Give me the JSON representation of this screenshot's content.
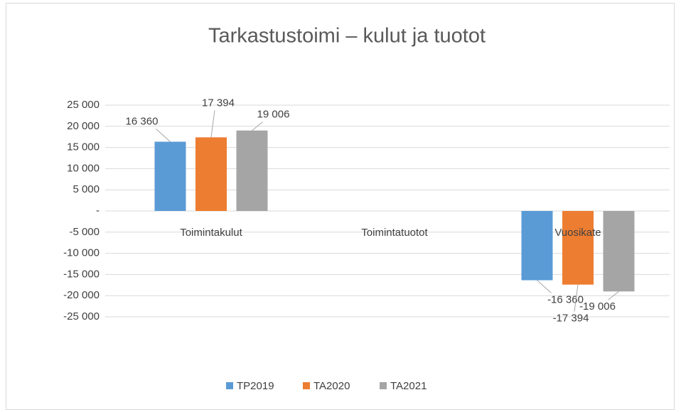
{
  "chart_data": {
    "type": "bar",
    "title": "Tarkastustoimi – kulut ja tuotot",
    "categories": [
      "Toimintakulut",
      "Toimintatuotot",
      "Vuosikate"
    ],
    "series": [
      {
        "name": "TP2019",
        "color": "#5b9bd5",
        "values": [
          16360,
          null,
          -16360
        ],
        "value_labels": [
          "16 360",
          null,
          "-16 360"
        ]
      },
      {
        "name": "TA2020",
        "color": "#ed7d31",
        "values": [
          17394,
          null,
          -17394
        ],
        "value_labels": [
          "17 394",
          null,
          "-17 394"
        ]
      },
      {
        "name": "TA2021",
        "color": "#a5a5a5",
        "values": [
          19006,
          null,
          -19006
        ],
        "value_labels": [
          "19 006",
          null,
          "-19 006"
        ]
      }
    ],
    "ylim": [
      -25000,
      25000
    ],
    "yticks": [
      {
        "value": -25000,
        "label": "-25 000"
      },
      {
        "value": -20000,
        "label": "-20 000"
      },
      {
        "value": -15000,
        "label": "-15 000"
      },
      {
        "value": -10000,
        "label": "-10 000"
      },
      {
        "value": -5000,
        "label": "-5 000"
      },
      {
        "value": 0,
        "label": "-"
      },
      {
        "value": 5000,
        "label": "5 000"
      },
      {
        "value": 10000,
        "label": "10 000"
      },
      {
        "value": 15000,
        "label": "15 000"
      },
      {
        "value": 20000,
        "label": "20 000"
      },
      {
        "value": 25000,
        "label": "25 000"
      }
    ],
    "grid": true,
    "legend": "bottom"
  }
}
